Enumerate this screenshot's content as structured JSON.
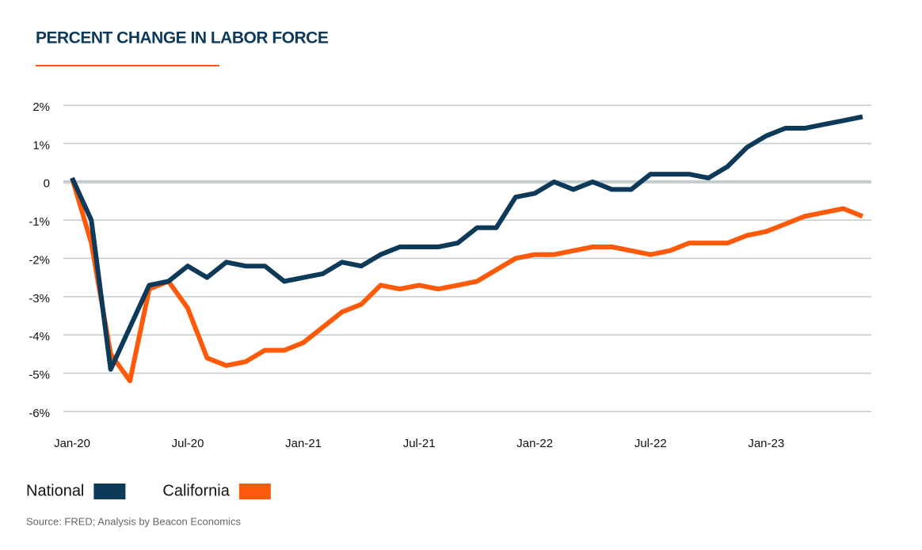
{
  "chart_data": {
    "type": "line",
    "title": "PERCENT CHANGE IN LABOR FORCE",
    "categories": [
      "Jan-20",
      null,
      null,
      null,
      null,
      null,
      "Jul-20",
      null,
      null,
      null,
      null,
      null,
      "Jan-21",
      null,
      null,
      null,
      null,
      null,
      "Jul-21",
      null,
      null,
      null,
      null,
      null,
      "Jan-22",
      null,
      null,
      null,
      null,
      null,
      "Jul-22",
      null,
      null,
      null,
      null,
      null,
      "Jan-23",
      null,
      null,
      null,
      null,
      null
    ],
    "series": [
      {
        "name": "National",
        "color": "#0e3a5a",
        "values": [
          0.1,
          -1.0,
          -4.9,
          -3.8,
          -2.7,
          -2.6,
          -2.2,
          -2.5,
          -2.1,
          -2.2,
          -2.2,
          -2.6,
          -2.5,
          -2.4,
          -2.1,
          -2.2,
          -1.9,
          -1.7,
          -1.7,
          -1.7,
          -1.6,
          -1.2,
          -1.2,
          -0.4,
          -0.3,
          0.0,
          -0.2,
          0.0,
          -0.2,
          -0.2,
          0.2,
          0.2,
          0.2,
          0.1,
          0.4,
          0.9,
          1.2,
          1.4,
          1.4,
          1.5,
          1.6,
          1.7
        ]
      },
      {
        "name": "California",
        "color": "#ff5a0a",
        "values": [
          0.1,
          -1.6,
          -4.5,
          -5.2,
          -2.8,
          -2.6,
          -3.3,
          -4.6,
          -4.8,
          -4.7,
          -4.4,
          -4.4,
          -4.2,
          -3.8,
          -3.4,
          -3.2,
          -2.7,
          -2.8,
          -2.7,
          -2.8,
          -2.7,
          -2.6,
          -2.3,
          -2.0,
          -1.9,
          -1.9,
          -1.8,
          -1.7,
          -1.7,
          -1.8,
          -1.9,
          -1.8,
          -1.6,
          -1.6,
          -1.6,
          -1.4,
          -1.3,
          -1.1,
          -0.9,
          -0.8,
          -0.7,
          -0.9
        ]
      }
    ],
    "ylim": [
      -6,
      2
    ],
    "yticks": [
      {
        "value": 2,
        "label": "2%"
      },
      {
        "value": 1,
        "label": "1%"
      },
      0,
      {
        "value": -1,
        "label": "-1%"
      },
      {
        "value": -2,
        "label": "-2%"
      },
      {
        "value": -3,
        "label": "-3%"
      },
      {
        "value": -4,
        "label": "-4%"
      },
      {
        "value": -5,
        "label": "-5%"
      },
      {
        "value": -6,
        "label": "-6%"
      }
    ],
    "grid": true,
    "source": "Source: FRED; Analysis by Beacon Economics"
  }
}
